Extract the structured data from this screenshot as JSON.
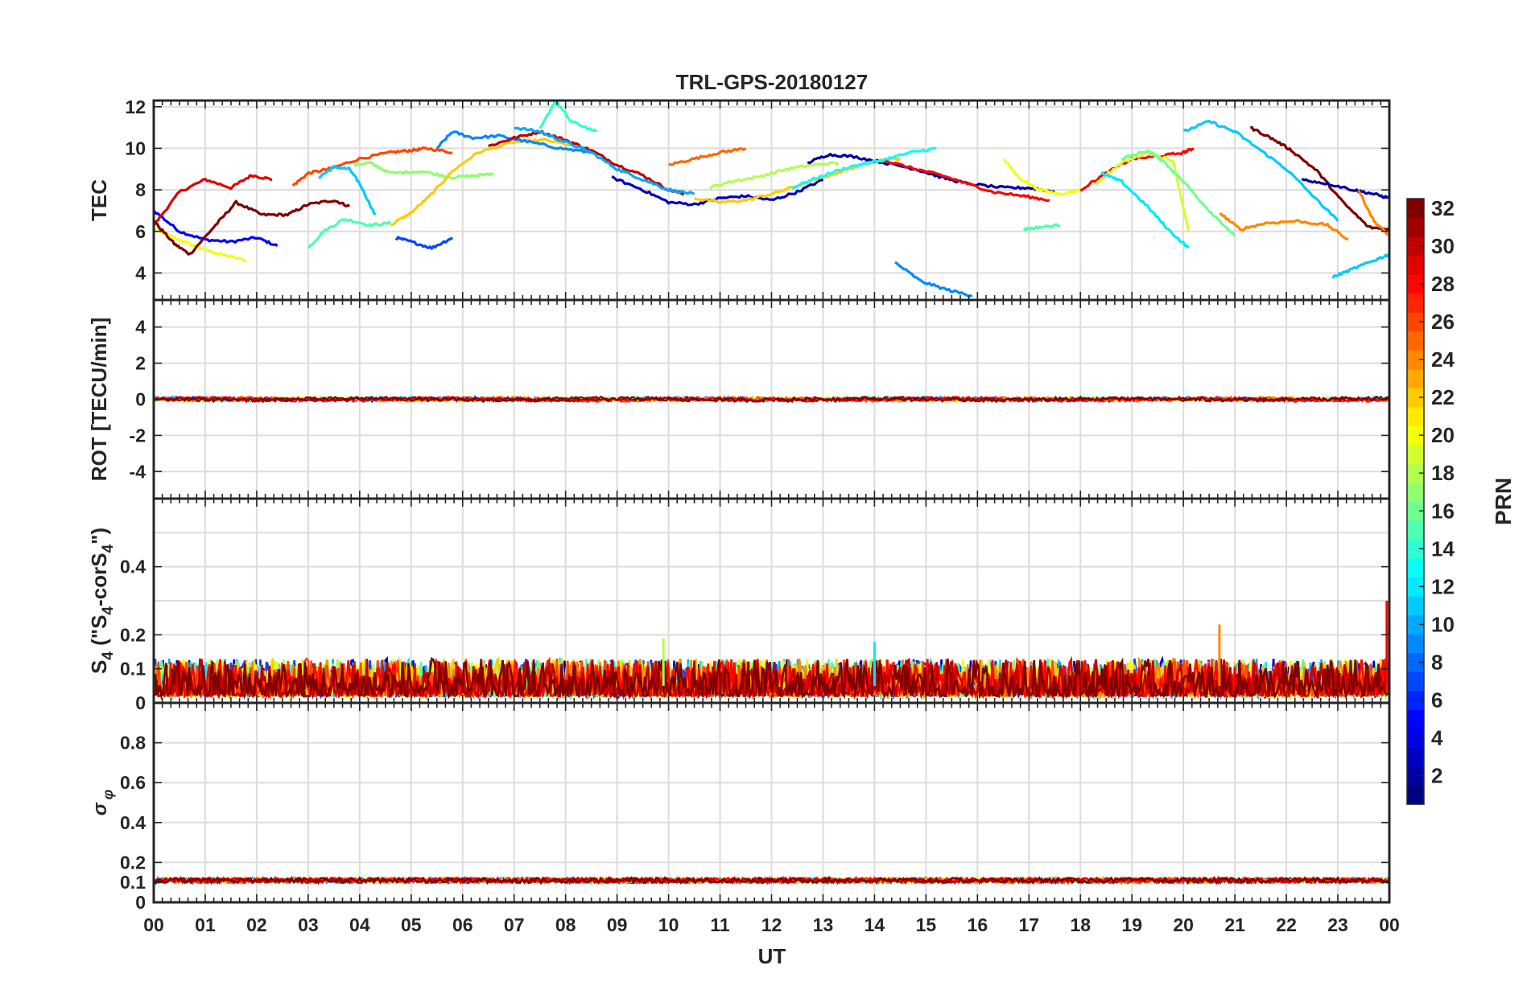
{
  "chart_data": {
    "type": "line",
    "title": "TRL-GPS-20180127",
    "xlabel": "UT",
    "x_range": [
      0,
      24
    ],
    "x_tick_labels": [
      "00",
      "01",
      "02",
      "03",
      "04",
      "05",
      "06",
      "07",
      "08",
      "09",
      "10",
      "11",
      "12",
      "13",
      "14",
      "15",
      "16",
      "17",
      "18",
      "19",
      "20",
      "21",
      "22",
      "23",
      "00"
    ],
    "colorbar": {
      "label": "PRN",
      "range": [
        1,
        32
      ],
      "tick_labels": [
        "2",
        "4",
        "6",
        "8",
        "10",
        "12",
        "14",
        "16",
        "18",
        "20",
        "22",
        "24",
        "26",
        "28",
        "30",
        "32"
      ],
      "colormap": "jet"
    },
    "panels": [
      {
        "id": "tec",
        "ylabel": "TEC",
        "ylim": [
          2.7,
          12.3
        ],
        "y_tick_labels": [
          "4",
          "6",
          "8",
          "10",
          "12"
        ],
        "series": [
          {
            "prn": 20,
            "x": [
              0.0,
              0.4,
              0.9,
              1.3,
              1.8
            ],
            "y": [
              6.1,
              5.7,
              5.2,
              4.9,
              4.6
            ]
          },
          {
            "prn": 5,
            "x": [
              0.0,
              0.5,
              1.0,
              1.5,
              2.0,
              2.4
            ],
            "y": [
              7.0,
              6.0,
              5.6,
              5.5,
              5.7,
              5.3
            ]
          },
          {
            "prn": 29,
            "x": [
              0.0,
              0.5,
              1.0,
              1.5,
              1.9,
              2.3
            ],
            "y": [
              6.3,
              7.9,
              8.5,
              8.1,
              8.7,
              8.5
            ]
          },
          {
            "prn": 32,
            "x": [
              0.0,
              0.4,
              0.7,
              1.2,
              1.6,
              2.1,
              2.6,
              3.0,
              3.5,
              3.8
            ],
            "y": [
              6.5,
              5.4,
              4.9,
              6.3,
              7.4,
              6.8,
              6.8,
              7.3,
              7.5,
              7.2
            ]
          },
          {
            "prn": 26,
            "x": [
              2.7,
              3.0,
              3.4,
              4.0,
              4.6,
              5.0,
              5.3,
              5.8
            ],
            "y": [
              8.2,
              8.8,
              9.0,
              9.5,
              9.8,
              9.9,
              10.0,
              9.8
            ]
          },
          {
            "prn": 15,
            "x": [
              3.0,
              3.3,
              3.7,
              4.2,
              4.6
            ],
            "y": [
              5.2,
              6.0,
              6.6,
              6.3,
              6.4
            ]
          },
          {
            "prn": 11,
            "x": [
              3.2,
              3.5,
              3.8,
              4.0,
              4.3
            ],
            "y": [
              8.6,
              9.1,
              9.0,
              8.3,
              6.8
            ]
          },
          {
            "prn": 17,
            "x": [
              3.9,
              4.2,
              4.6,
              5.2,
              5.8,
              6.3,
              6.6
            ],
            "y": [
              9.2,
              9.3,
              8.8,
              8.9,
              8.6,
              8.7,
              8.8
            ]
          },
          {
            "prn": 22,
            "x": [
              4.6,
              5.0,
              5.4,
              5.8,
              6.3,
              7.0,
              7.6,
              8.2
            ],
            "y": [
              6.3,
              6.9,
              7.8,
              8.9,
              9.8,
              10.3,
              10.4,
              10.1
            ]
          },
          {
            "prn": 9,
            "x": [
              5.5,
              5.8,
              6.2,
              6.7,
              7.3,
              7.9,
              8.5
            ],
            "y": [
              10.0,
              10.8,
              10.5,
              10.6,
              10.3,
              10.0,
              9.8
            ]
          },
          {
            "prn": 7,
            "x": [
              4.7,
              5.0,
              5.4,
              5.8
            ],
            "y": [
              5.7,
              5.5,
              5.2,
              5.7
            ]
          },
          {
            "prn": 30,
            "x": [
              6.5,
              7.0,
              7.5,
              8.0,
              8.5,
              9.0,
              9.5,
              10.0,
              10.3
            ],
            "y": [
              10.1,
              10.5,
              10.8,
              10.4,
              9.9,
              9.2,
              8.7,
              8.0,
              7.8
            ]
          },
          {
            "prn": 10,
            "x": [
              7.0,
              7.5,
              8.0,
              8.5,
              9.0,
              9.5,
              10.0,
              10.5
            ],
            "y": [
              11.0,
              10.8,
              10.3,
              9.8,
              9.0,
              8.5,
              8.0,
              7.8
            ]
          },
          {
            "prn": 14,
            "x": [
              7.5,
              7.8,
              8.1,
              8.6
            ],
            "y": [
              10.9,
              12.3,
              11.3,
              10.8
            ]
          },
          {
            "prn": 3,
            "x": [
              8.9,
              9.5,
              10.0,
              10.5,
              11.0,
              11.5,
              12.0,
              12.5,
              13.0
            ],
            "y": [
              8.6,
              8.0,
              7.4,
              7.3,
              7.6,
              7.7,
              7.5,
              7.9,
              8.5
            ]
          },
          {
            "prn": 25,
            "x": [
              10.0,
              10.5,
              11.0,
              11.5
            ],
            "y": [
              9.2,
              9.5,
              9.8,
              10.0
            ]
          },
          {
            "prn": 22,
            "x": [
              10.5,
              11.0,
              11.5,
              12.0,
              12.5,
              13.0,
              13.5,
              14.0,
              14.5
            ],
            "y": [
              7.6,
              7.4,
              7.5,
              7.8,
              8.2,
              8.6,
              9.0,
              9.4,
              9.5
            ]
          },
          {
            "prn": 18,
            "x": [
              10.8,
              11.2,
              11.7,
              12.3,
              12.8,
              13.3
            ],
            "y": [
              8.1,
              8.4,
              8.6,
              9.0,
              9.2,
              9.3
            ]
          },
          {
            "prn": 2,
            "x": [
              12.7,
              13.1,
              13.6,
              14.2,
              14.8,
              15.3,
              15.8,
              16.5,
              17.0,
              17.5
            ],
            "y": [
              9.3,
              9.7,
              9.6,
              9.3,
              9.0,
              8.6,
              8.3,
              8.1,
              8.1,
              7.9
            ]
          },
          {
            "prn": 13,
            "x": [
              12.4,
              12.9,
              13.5,
              14.1,
              14.7,
              15.2
            ],
            "y": [
              8.1,
              8.6,
              9.1,
              9.4,
              9.8,
              10.0
            ]
          },
          {
            "prn": 9,
            "x": [
              14.4,
              14.9,
              15.4,
              15.9
            ],
            "y": [
              4.5,
              3.6,
              3.2,
              2.9
            ]
          },
          {
            "prn": 28,
            "x": [
              14.2,
              14.8,
              15.3,
              15.8,
              16.3,
              16.9,
              17.4
            ],
            "y": [
              9.4,
              9.0,
              8.7,
              8.3,
              7.9,
              7.7,
              7.5
            ]
          },
          {
            "prn": 20,
            "x": [
              16.5,
              16.8,
              17.2,
              17.6,
              18.0
            ],
            "y": [
              9.5,
              8.6,
              8.0,
              7.8,
              8.0
            ]
          },
          {
            "prn": 15,
            "x": [
              16.9,
              17.2,
              17.6
            ],
            "y": [
              6.1,
              6.2,
              6.3
            ]
          },
          {
            "prn": 28,
            "x": [
              18.0,
              18.5,
              19.0,
              19.5,
              20.0,
              20.2
            ],
            "y": [
              8.0,
              8.8,
              9.5,
              9.6,
              9.8,
              10.0
            ]
          },
          {
            "prn": 19,
            "x": [
              18.3,
              18.8,
              19.3,
              19.8,
              20.1
            ],
            "y": [
              8.3,
              9.3,
              9.8,
              9.4,
              6.0
            ]
          },
          {
            "prn": 12,
            "x": [
              18.4,
              18.8,
              19.3,
              19.7,
              20.1
            ],
            "y": [
              8.8,
              8.4,
              7.2,
              6.1,
              5.2
            ]
          },
          {
            "prn": 16,
            "x": [
              18.8,
              19.3,
              19.6,
              20.0,
              20.5,
              21.0
            ],
            "y": [
              9.5,
              9.9,
              9.4,
              8.4,
              7.0,
              5.8
            ]
          },
          {
            "prn": 11,
            "x": [
              20.0,
              20.5,
              21.0,
              21.5,
              22.0,
              22.6,
              23.0
            ],
            "y": [
              10.8,
              11.3,
              10.8,
              9.9,
              9.0,
              7.5,
              6.5
            ]
          },
          {
            "prn": 24,
            "x": [
              20.7,
              21.1,
              21.6,
              22.2,
              22.8,
              23.2
            ],
            "y": [
              6.9,
              6.1,
              6.4,
              6.5,
              6.3,
              5.6
            ]
          },
          {
            "prn": 32,
            "x": [
              21.3,
              21.7,
              22.1,
              22.6,
              23.1,
              23.6,
              24.0
            ],
            "y": [
              11.0,
              10.5,
              9.9,
              8.9,
              7.4,
              6.2,
              6.1
            ]
          },
          {
            "prn": 2,
            "x": [
              22.3,
              22.8,
              23.3,
              23.7,
              24.0
            ],
            "y": [
              8.5,
              8.3,
              8.0,
              7.8,
              7.6
            ]
          },
          {
            "prn": 11,
            "x": [
              22.9,
              23.3,
              23.7,
              24.0
            ],
            "y": [
              3.8,
              4.2,
              4.6,
              4.9
            ]
          },
          {
            "prn": 24,
            "x": [
              23.4,
              23.7,
              24.0
            ],
            "y": [
              8.0,
              6.5,
              5.8
            ]
          }
        ]
      },
      {
        "id": "rot",
        "ylabel": "ROT [TECU/min]",
        "ylim": [
          -5.5,
          5.5
        ],
        "y_tick_labels": [
          "4",
          "2",
          "0",
          "-2",
          "-4"
        ],
        "description_values": "ROT traces of all satellites fluctuate tightly around 0, within about ±0.3 TECU/min"
      },
      {
        "id": "s4",
        "ylabel": "S4 (\"S4-corS4\")",
        "ylim": [
          0,
          0.6
        ],
        "y_tick_labels": [
          "0.4",
          "0.2",
          "0.1",
          "0"
        ],
        "noise_band": [
          0.0,
          0.1
        ],
        "peaks": [
          {
            "x": 20.7,
            "y": 0.23,
            "prn": 24
          },
          {
            "x": 23.95,
            "y": 0.3,
            "prn": 28
          },
          {
            "x": 9.9,
            "y": 0.19,
            "prn": 18
          },
          {
            "x": 14.0,
            "y": 0.18,
            "prn": 12
          }
        ]
      },
      {
        "id": "sigma_phi",
        "ylabel": "σ φ",
        "ylim": [
          0,
          1.0
        ],
        "y_tick_labels": [
          "0.8",
          "0.6",
          "0.4",
          "0.2",
          "0.1",
          "0"
        ],
        "baseline": 0.11
      }
    ]
  }
}
